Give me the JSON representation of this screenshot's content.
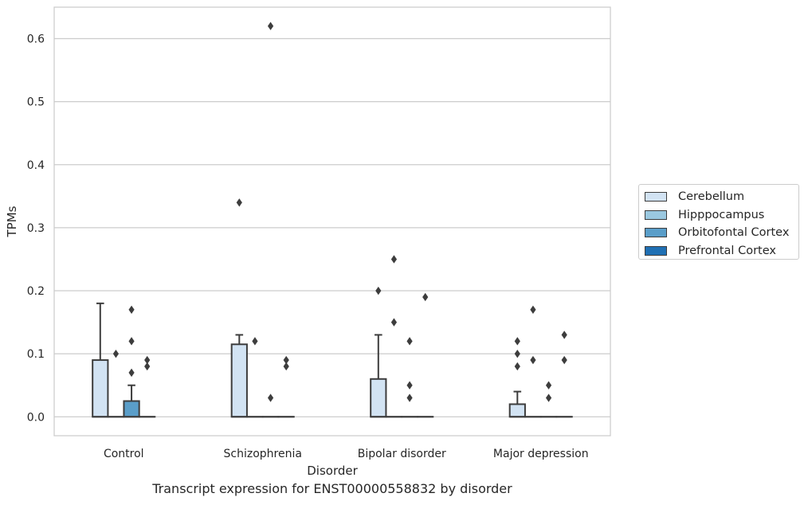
{
  "chart_data": {
    "type": "box",
    "title": "",
    "caption": "Transcript expression for ENST00000558832 by disorder",
    "xlabel": "Disorder",
    "ylabel": "TPMs",
    "ylim": [
      -0.03,
      0.65
    ],
    "yticks": [
      0.0,
      0.1,
      0.2,
      0.3,
      0.4,
      0.5,
      0.6
    ],
    "ytick_labels": [
      "0.0",
      "0.1",
      "0.2",
      "0.3",
      "0.4",
      "0.5",
      "0.6"
    ],
    "grid": true,
    "legend_position": "right",
    "categories": [
      "Control",
      "Schizophrenia",
      "Bipolar disorder",
      "Major depression"
    ],
    "series": [
      {
        "name": "Cerebellum",
        "color": "#d2e3f3",
        "boxes": [
          {
            "min": 0.0,
            "q1": 0.0,
            "median": 0.0,
            "q3": 0.09,
            "max": 0.18,
            "outliers": []
          },
          {
            "min": 0.0,
            "q1": 0.0,
            "median": 0.0,
            "q3": 0.115,
            "max": 0.13,
            "outliers": [
              0.34
            ]
          },
          {
            "min": 0.0,
            "q1": 0.0,
            "median": 0.0,
            "q3": 0.06,
            "max": 0.13,
            "outliers": [
              0.2
            ]
          },
          {
            "min": 0.0,
            "q1": 0.0,
            "median": 0.0,
            "q3": 0.02,
            "max": 0.04,
            "outliers": [
              0.08,
              0.1,
              0.12
            ]
          }
        ]
      },
      {
        "name": "Hipppocampus",
        "color": "#9ac8e0",
        "boxes": [
          {
            "min": 0.0,
            "q1": 0.0,
            "median": 0.0,
            "q3": 0.0,
            "max": 0.0,
            "outliers": [
              0.1
            ]
          },
          {
            "min": 0.0,
            "q1": 0.0,
            "median": 0.0,
            "q3": 0.0,
            "max": 0.0,
            "outliers": [
              0.12
            ]
          },
          {
            "min": 0.0,
            "q1": 0.0,
            "median": 0.0,
            "q3": 0.0,
            "max": 0.0,
            "outliers": [
              0.15,
              0.25
            ]
          },
          {
            "min": 0.0,
            "q1": 0.0,
            "median": 0.0,
            "q3": 0.0,
            "max": 0.0,
            "outliers": [
              0.09,
              0.17
            ]
          }
        ]
      },
      {
        "name": "Orbitofontal Cortex",
        "color": "#5a9ec9",
        "boxes": [
          {
            "min": 0.0,
            "q1": 0.0,
            "median": 0.0,
            "q3": 0.025,
            "max": 0.05,
            "outliers": [
              0.07,
              0.12,
              0.17
            ]
          },
          {
            "min": 0.0,
            "q1": 0.0,
            "median": 0.0,
            "q3": 0.0,
            "max": 0.0,
            "outliers": [
              0.03,
              0.62
            ]
          },
          {
            "min": 0.0,
            "q1": 0.0,
            "median": 0.0,
            "q3": 0.0,
            "max": 0.0,
            "outliers": [
              0.03,
              0.05,
              0.12
            ]
          },
          {
            "min": 0.0,
            "q1": 0.0,
            "median": 0.0,
            "q3": 0.0,
            "max": 0.0,
            "outliers": [
              0.03,
              0.05
            ]
          }
        ]
      },
      {
        "name": "Prefrontal Cortex",
        "color": "#2070b4",
        "boxes": [
          {
            "min": 0.0,
            "q1": 0.0,
            "median": 0.0,
            "q3": 0.0,
            "max": 0.0,
            "outliers": [
              0.08,
              0.09
            ]
          },
          {
            "min": 0.0,
            "q1": 0.0,
            "median": 0.0,
            "q3": 0.0,
            "max": 0.0,
            "outliers": [
              0.08,
              0.09
            ]
          },
          {
            "min": 0.0,
            "q1": 0.0,
            "median": 0.0,
            "q3": 0.0,
            "max": 0.0,
            "outliers": [
              0.19
            ]
          },
          {
            "min": 0.0,
            "q1": 0.0,
            "median": 0.0,
            "q3": 0.0,
            "max": 0.0,
            "outliers": [
              0.09,
              0.13
            ]
          }
        ]
      }
    ]
  }
}
